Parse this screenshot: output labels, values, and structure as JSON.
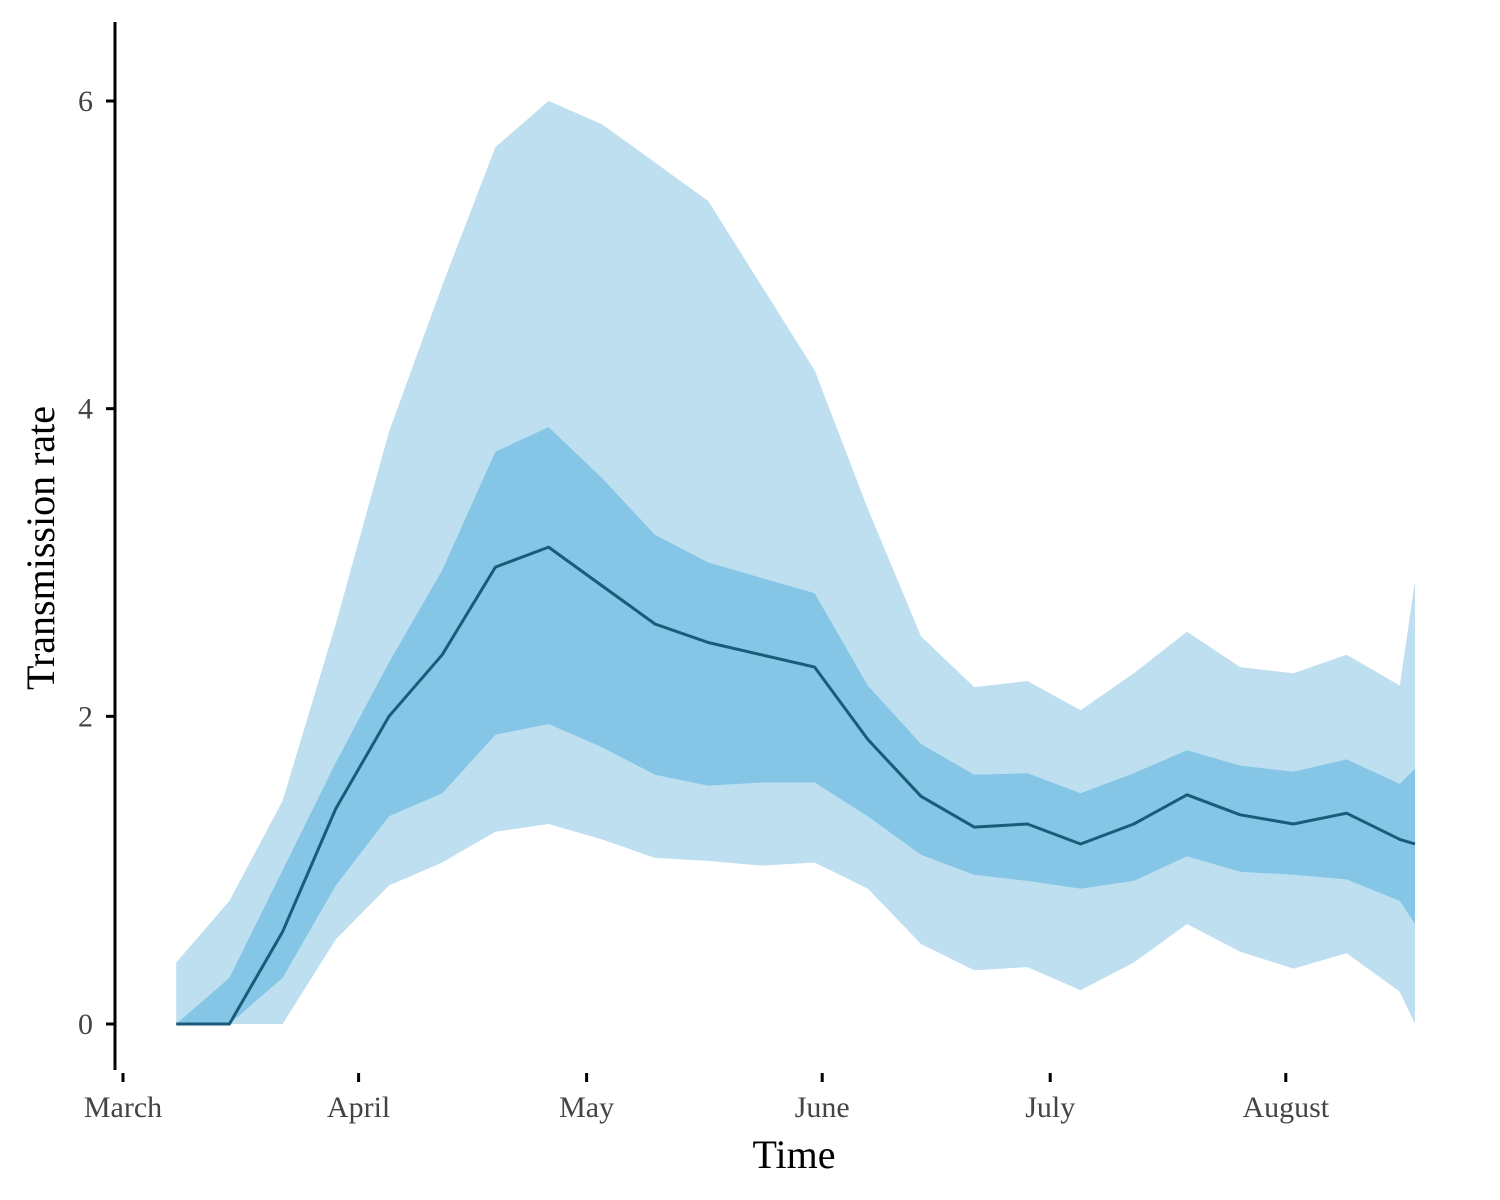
{
  "chart_data": {
    "type": "area",
    "title": "",
    "xlabel": "Time",
    "ylabel": "Transmission rate",
    "x_unit": "day of year (2020)",
    "x_ticks": [
      {
        "label": "March",
        "value": 61
      },
      {
        "label": "April",
        "value": 92
      },
      {
        "label": "May",
        "value": 122
      },
      {
        "label": "June",
        "value": 153
      },
      {
        "label": "July",
        "value": 183
      },
      {
        "label": "August",
        "value": 214
      }
    ],
    "y_ticks": [
      0,
      2,
      4,
      6
    ],
    "xlim": [
      61,
      231
    ],
    "ylim": [
      -0.28,
      6.5
    ],
    "grid": false,
    "legend": "none",
    "x": [
      68,
      75,
      82,
      89,
      96,
      103,
      110,
      117,
      124,
      131,
      138,
      145,
      152,
      159,
      166,
      173,
      180,
      187,
      194,
      201,
      208,
      215,
      222,
      229
    ],
    "series": [
      {
        "role": "median",
        "color": "#1a5a7a",
        "values": [
          0.0,
          0.0,
          0.6,
          1.4,
          2.0,
          2.4,
          2.97,
          3.1,
          2.85,
          2.6,
          2.48,
          2.4,
          2.32,
          1.85,
          1.48,
          1.28,
          1.3,
          1.17,
          1.3,
          1.49,
          1.36,
          1.3,
          1.37,
          1.2
        ]
      },
      {
        "role": "inner-band",
        "color": "#85c6e6",
        "lower": [
          0.0,
          0.0,
          0.3,
          0.9,
          1.35,
          1.5,
          1.88,
          1.95,
          1.8,
          1.62,
          1.55,
          1.57,
          1.57,
          1.35,
          1.1,
          0.97,
          0.93,
          0.88,
          0.93,
          1.09,
          0.99,
          0.97,
          0.94,
          0.8
        ],
        "upper": [
          0.0,
          0.3,
          1.0,
          1.7,
          2.35,
          2.95,
          3.72,
          3.88,
          3.55,
          3.18,
          3.0,
          2.9,
          2.8,
          2.2,
          1.82,
          1.62,
          1.63,
          1.5,
          1.63,
          1.78,
          1.68,
          1.64,
          1.72,
          1.56
        ]
      },
      {
        "role": "outer-band",
        "color": "#bddff0",
        "lower": [
          0.0,
          0.0,
          0.0,
          0.55,
          0.9,
          1.05,
          1.25,
          1.3,
          1.2,
          1.08,
          1.06,
          1.03,
          1.05,
          0.88,
          0.52,
          0.35,
          0.37,
          0.22,
          0.4,
          0.65,
          0.47,
          0.36,
          0.46,
          0.21
        ],
        "upper": [
          0.4,
          0.8,
          1.45,
          2.6,
          3.85,
          4.8,
          5.7,
          6.0,
          5.85,
          5.6,
          5.35,
          4.8,
          4.25,
          3.35,
          2.52,
          2.19,
          2.23,
          2.04,
          2.28,
          2.55,
          2.32,
          2.28,
          2.4,
          2.2
        ]
      }
    ],
    "final_point": {
      "x": 231,
      "median": 1.17,
      "inner_lower": 0.65,
      "inner_upper": 1.66,
      "outer_lower": 0.0,
      "outer_upper": 2.88
    }
  }
}
